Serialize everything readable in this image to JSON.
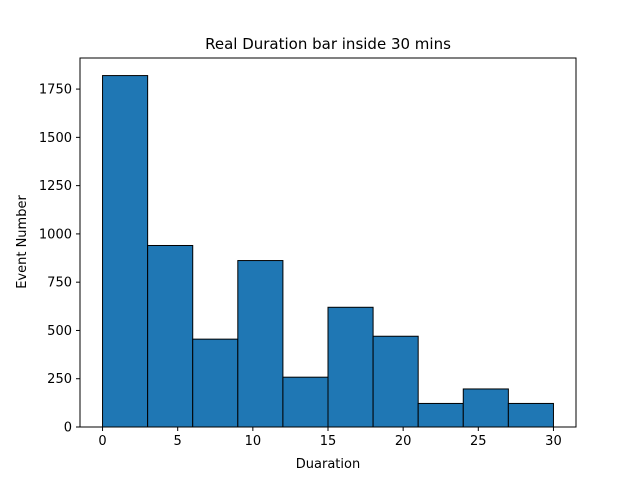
{
  "chart_data": {
    "type": "bar",
    "title": "Real Duration bar inside 30 mins",
    "xlabel": "Duaration",
    "ylabel": "Event Number",
    "bin_edges": [
      0,
      3,
      6,
      9,
      12,
      15,
      18,
      21,
      24,
      27,
      30
    ],
    "values": [
      1820,
      940,
      455,
      862,
      258,
      620,
      470,
      122,
      197,
      122
    ],
    "xlim": [
      -1.5,
      31.5
    ],
    "ylim": [
      0,
      1911
    ],
    "xticks": [
      0,
      5,
      10,
      15,
      20,
      25,
      30
    ],
    "yticks": [
      0,
      250,
      500,
      750,
      1000,
      1250,
      1500,
      1750
    ],
    "bar_color": "#1f77b4",
    "edge_color": "#000000",
    "grid": false,
    "legend": "none"
  }
}
